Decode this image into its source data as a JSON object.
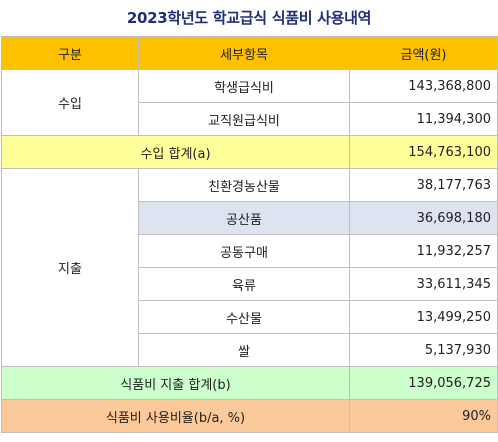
{
  "title": "2023학년도 학교급식 식품비 사용내역",
  "header": {
    "col1": "구분",
    "col2": "세부항목",
    "col3": "금액(원)"
  },
  "income": {
    "label": "수입",
    "rows": [
      {
        "item": "학생급식비",
        "amount": "143,368,800"
      },
      {
        "item": "교직원급식비",
        "amount": "11,394,300"
      }
    ],
    "total_label": "수입 합계(a)",
    "total_amount": "154,763,100"
  },
  "expense": {
    "label": "지출",
    "rows": [
      {
        "item": "친환경농산물",
        "amount": "38,177,763"
      },
      {
        "item": "공산품",
        "amount": "36,698,180"
      },
      {
        "item": "공동구매",
        "amount": "11,932,257"
      },
      {
        "item": "육류",
        "amount": "33,611,345"
      },
      {
        "item": "수산물",
        "amount": "13,499,250"
      },
      {
        "item": "쌀",
        "amount": "5,137,930"
      }
    ],
    "total_label": "식품비 지출 합계(b)",
    "total_amount": "139,056,725"
  },
  "ratio": {
    "label": "식품비 사용비율(b/a, %)",
    "value": "90%"
  },
  "colors": {
    "header": "#ffc000",
    "income_total": "#ffff99",
    "expense_total": "#ccffcc",
    "ratio_row": "#fcc99a",
    "selected_row": "#dde3f0",
    "title": "#1f2f7a"
  }
}
